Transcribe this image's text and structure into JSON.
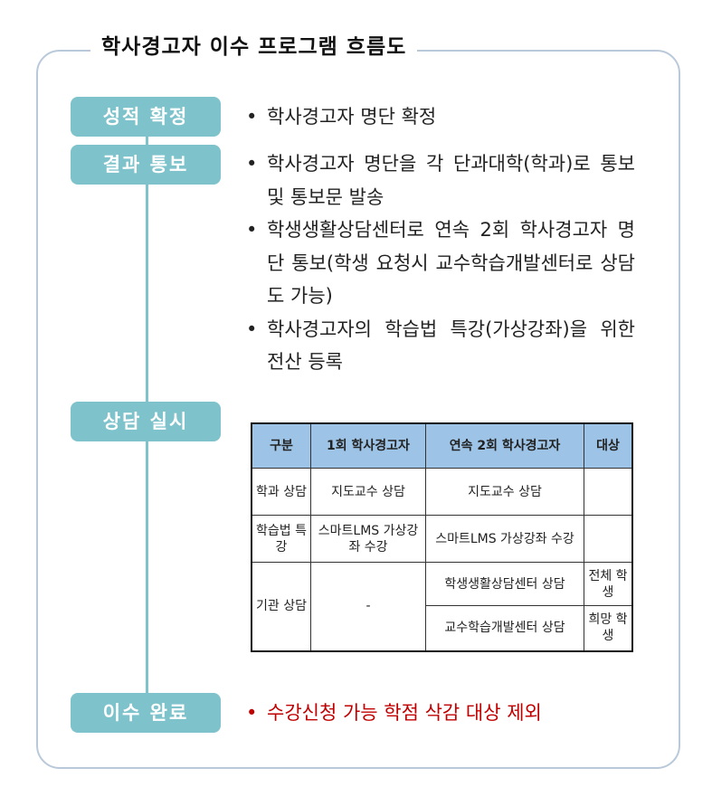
{
  "title": "학사경고자 이수 프로그램 흐름도",
  "steps": [
    "성적 확정",
    "결과 통보",
    "상담 실시",
    "이수 완료"
  ],
  "step1_bullets": [
    "학사경고자 명단 확정"
  ],
  "step2_bullets": [
    "학사경고자 명단을 각 단과대학(학과)로 통보 및 통보문 발송",
    "학생생활상담센터로 연속 2회 학사경고자 명단 통보(학생 요청시 교수학습개발센터로 상담도 가능)",
    "학사경고자의 학습법 특강(가상강좌)을 위한 전산 등록"
  ],
  "step4_bullets": [
    "수강신청 가능 학점 삭감 대상 제외"
  ],
  "table": {
    "headers": [
      "구분",
      "1회 학사경고자",
      "연속 2회 학사경고자",
      "대상"
    ],
    "rows": [
      {
        "label": "학과 상담",
        "first": "지도교수 상담",
        "second": "지도교수 상담",
        "target": ""
      },
      {
        "label": "학습법 특강",
        "first": "스마트LMS 가상강좌 수강",
        "second": "스마트LMS 가상강좌 수강",
        "target": ""
      },
      {
        "label": "기관 상담",
        "first": "-",
        "second_a": "학생생활상담센터 상담",
        "target_a": "전체 학생",
        "second_b": "교수학습개발센터 상담",
        "target_b": "희망 학생"
      }
    ]
  },
  "colors": {
    "step": "#7ec3cb",
    "header": "#9dc3e6",
    "emphasis": "#c00000",
    "frame": "#b9c9da"
  }
}
